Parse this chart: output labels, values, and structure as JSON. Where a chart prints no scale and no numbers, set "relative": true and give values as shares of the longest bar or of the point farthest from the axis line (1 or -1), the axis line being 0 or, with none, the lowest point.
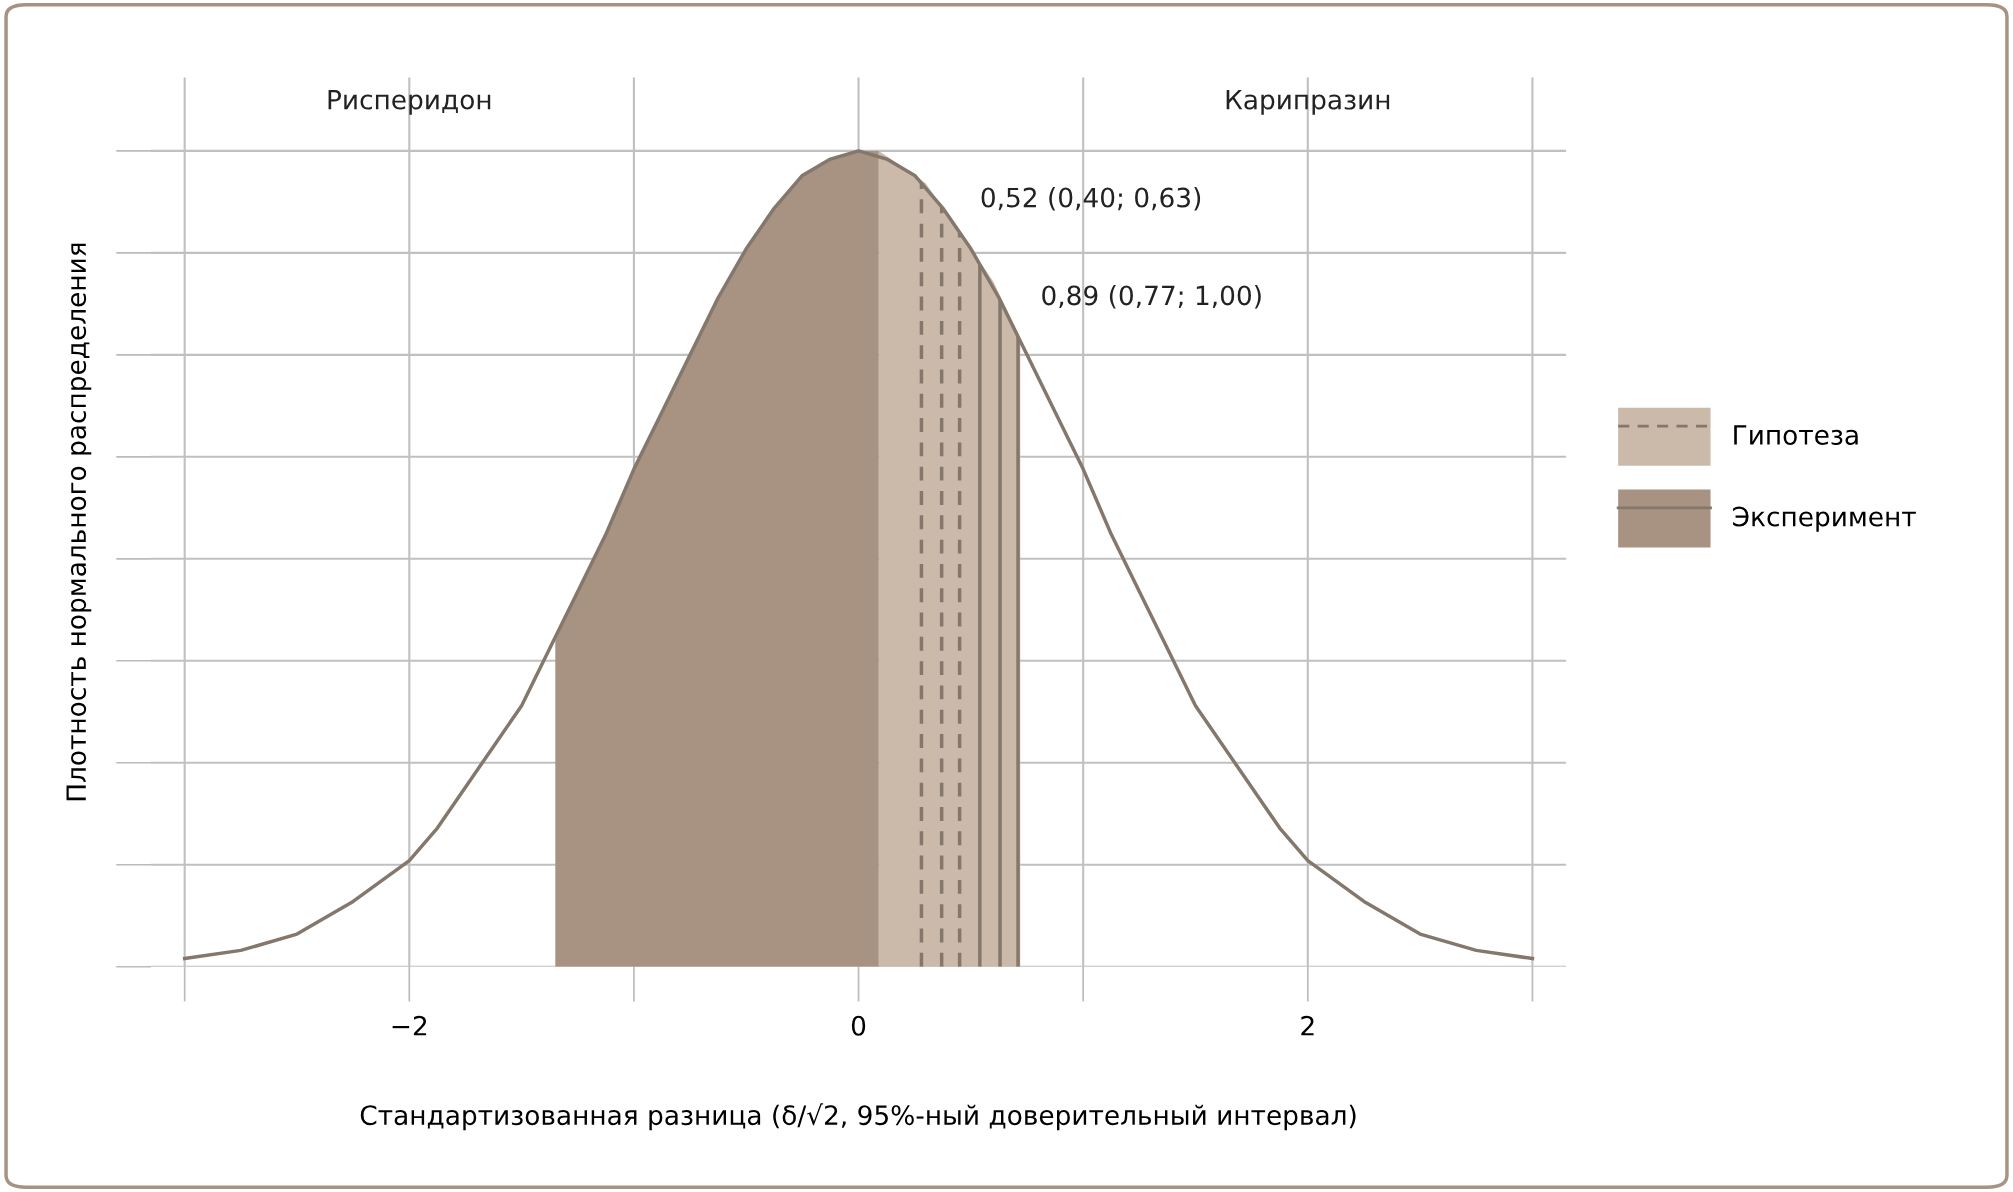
{
  "chart_data": {
    "type": "line",
    "relative": true,
    "xlabel": "Стандартизованная разница (δ/√2, 95%-ный доверительный интервал)",
    "ylabel": "Плотность нормального распределения",
    "xlim": [
      -3.15,
      3.15
    ],
    "xticks": [
      {
        "value": -3,
        "label": null
      },
      {
        "value": -2,
        "label": "−2"
      },
      {
        "value": -1,
        "label": null
      },
      {
        "value": 0,
        "label": "0"
      },
      {
        "value": 1,
        "label": null
      },
      {
        "value": 2,
        "label": "2"
      },
      {
        "value": 3,
        "label": null
      }
    ],
    "grid": true,
    "legend": "right",
    "tick_labels": "x",
    "series": [
      {
        "type": "area",
        "name": "Гипотеза",
        "color": "#cbb9aa",
        "line_style": "dashed",
        "x": [
          0.09,
          0.2,
          0.3,
          0.4,
          0.5,
          0.6,
          0.72
        ],
        "values": [
          1.0,
          0.98,
          0.96,
          0.92,
          0.88,
          0.84,
          0.77
        ]
      },
      {
        "type": "area",
        "name": "Эксперимент",
        "color": "#a89282",
        "line_style": "solid",
        "x": [
          -1.35,
          -1.25,
          -1.125,
          -1.0,
          -0.875,
          -0.75,
          -0.625,
          -0.5,
          -0.375,
          -0.25,
          -0.125,
          0,
          0.09
        ],
        "values": [
          0.4,
          0.46,
          0.53,
          0.61,
          0.68,
          0.75,
          0.82,
          0.88,
          0.93,
          0.97,
          0.99,
          1.0,
          1.0
        ]
      },
      {
        "color": "#84776b",
        "x": [
          -3,
          -2.75,
          -2.5,
          -2.25,
          -2,
          -1.875,
          -1.75,
          -1.625,
          -1.5,
          -1.375,
          -1.25,
          -1.125,
          -1,
          -0.875,
          -0.75,
          -0.625,
          -0.5,
          -0.375,
          -0.25,
          -0.125,
          0,
          0.125,
          0.25,
          0.375,
          0.5,
          0.625,
          0.75,
          0.875,
          1,
          1.125,
          1.25,
          1.375,
          1.5,
          1.625,
          1.75,
          1.875,
          2,
          2.25,
          2.5,
          2.75,
          3
        ],
        "values": [
          0.01,
          0.02,
          0.04,
          0.08,
          0.13,
          0.17,
          0.22,
          0.27,
          0.32,
          0.39,
          0.46,
          0.53,
          0.61,
          0.68,
          0.75,
          0.82,
          0.88,
          0.93,
          0.97,
          0.99,
          1.0,
          0.99,
          0.97,
          0.93,
          0.88,
          0.82,
          0.75,
          0.68,
          0.61,
          0.53,
          0.46,
          0.39,
          0.32,
          0.27,
          0.22,
          0.17,
          0.13,
          0.08,
          0.04,
          0.02,
          0.01
        ]
      }
    ],
    "ref_lines": [
      {
        "axis": "x",
        "value": 0.28,
        "color": "#84776b",
        "line_style": "dashed"
      },
      {
        "axis": "x",
        "value": 0.37,
        "color": "#84776b",
        "line_style": "dashed"
      },
      {
        "axis": "x",
        "value": 0.45,
        "color": "#84776b",
        "line_style": "dashed"
      },
      {
        "axis": "x",
        "value": 0.54,
        "color": "#84776b",
        "line_style": "solid"
      },
      {
        "axis": "x",
        "value": 0.63,
        "color": "#84776b",
        "line_style": "solid"
      },
      {
        "axis": "x",
        "value": 0.71,
        "color": "#84776b",
        "line_style": "solid"
      }
    ],
    "annotations": [
      "0,52 (0,40; 0,63)",
      "0,89 (0,77; 1,00)",
      "Рисперидон",
      "Карипразин"
    ]
  }
}
